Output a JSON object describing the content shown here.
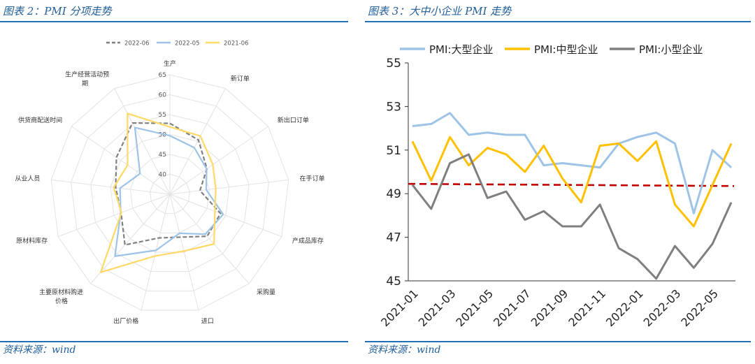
{
  "left": {
    "title": "图表 2：PMI 分项走势",
    "source": "资料来源：wind",
    "chart_data": {
      "type": "radar",
      "title": "PMI 分项走势",
      "axes": [
        "生产",
        "新订单",
        "新出口订单",
        "在手订单",
        "产成品库存",
        "采购量",
        "进口",
        "出厂价格",
        "主要原材料购进价格",
        "原材料库存",
        "从业人员",
        "供货商配送时间",
        "生产经营活动预期"
      ],
      "range": [
        35,
        65
      ],
      "ticks": [
        40,
        45,
        50,
        55,
        60,
        65
      ],
      "series": [
        {
          "name": "2022-06",
          "color": "#808080",
          "dash": true,
          "values": [
            52.8,
            50.4,
            46.3,
            42.6,
            48.6,
            49.1,
            46.1,
            46.3,
            52.0,
            48.1,
            48.7,
            51.3,
            55.2
          ]
        },
        {
          "name": "2022-05",
          "color": "#9DC3E6",
          "dash": false,
          "values": [
            49.7,
            48.2,
            46.2,
            44.2,
            49.3,
            48.4,
            45.1,
            49.5,
            55.8,
            48.2,
            47.6,
            44.1,
            53.9
          ]
        },
        {
          "name": "2021-06",
          "color": "#FFD966",
          "dash": false,
          "values": [
            51.9,
            51.5,
            48.1,
            46.6,
            47.1,
            51.7,
            49.7,
            51.0,
            61.2,
            48.0,
            49.2,
            47.9,
            57.9
          ]
        }
      ]
    }
  },
  "right": {
    "title": "图表 3：大中小企业 PMI 走势",
    "source": "资料来源：wind",
    "chart_data": {
      "type": "line",
      "title": "大中小企业 PMI 走势",
      "x": [
        "2021-01",
        "2021-02",
        "2021-03",
        "2021-04",
        "2021-05",
        "2021-06",
        "2021-07",
        "2021-08",
        "2021-09",
        "2021-10",
        "2021-11",
        "2021-12",
        "2022-01",
        "2022-02",
        "2022-03",
        "2022-04",
        "2022-05",
        "2022-06"
      ],
      "x_tick_labels": [
        "2021-01",
        "2021-03",
        "2021-05",
        "2021-07",
        "2021-09",
        "2021-11",
        "2022-01",
        "2022-03",
        "2022-05"
      ],
      "ylim": [
        45,
        55
      ],
      "yticks": [
        45,
        47,
        49,
        51,
        53,
        55
      ],
      "series": [
        {
          "name": "PMI:大型企业",
          "color": "#9DC3E6",
          "values": [
            52.1,
            52.2,
            52.7,
            51.7,
            51.8,
            51.7,
            51.7,
            50.3,
            50.4,
            50.3,
            50.2,
            51.3,
            51.6,
            51.8,
            51.3,
            48.1,
            51.0,
            50.2
          ]
        },
        {
          "name": "PMI:中型企业",
          "color": "#FFC000",
          "values": [
            51.4,
            49.6,
            51.6,
            50.3,
            51.1,
            50.8,
            50.0,
            51.2,
            49.7,
            48.6,
            51.2,
            51.3,
            50.5,
            51.4,
            48.5,
            47.5,
            49.4,
            51.3
          ]
        },
        {
          "name": "PMI:小型企业",
          "color": "#7F7F7F",
          "values": [
            49.4,
            48.3,
            50.4,
            50.8,
            48.8,
            49.1,
            47.8,
            48.2,
            47.5,
            47.5,
            48.5,
            46.5,
            46.0,
            45.1,
            46.6,
            45.6,
            46.7,
            48.6
          ]
        }
      ],
      "trendline": {
        "color": "#C00000",
        "dash": true,
        "start": 49.45,
        "end": 49.35
      }
    }
  }
}
